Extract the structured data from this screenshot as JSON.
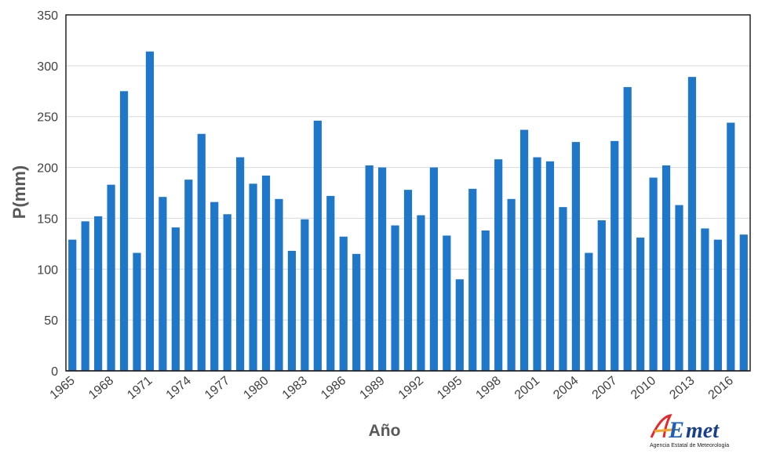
{
  "chart_data": {
    "type": "bar",
    "x": [
      1965,
      1966,
      1967,
      1968,
      1969,
      1970,
      1971,
      1972,
      1973,
      1974,
      1975,
      1976,
      1977,
      1978,
      1979,
      1980,
      1981,
      1982,
      1983,
      1984,
      1985,
      1986,
      1987,
      1988,
      1989,
      1990,
      1991,
      1992,
      1993,
      1994,
      1995,
      1996,
      1997,
      1998,
      1999,
      2000,
      2001,
      2002,
      2003,
      2004,
      2005,
      2006,
      2007,
      2008,
      2009,
      2010,
      2011,
      2012,
      2013,
      2014,
      2015,
      2016,
      2017
    ],
    "values": [
      129,
      147,
      152,
      183,
      275,
      116,
      314,
      171,
      141,
      188,
      233,
      166,
      154,
      210,
      184,
      192,
      169,
      118,
      149,
      246,
      172,
      132,
      115,
      202,
      200,
      143,
      178,
      153,
      200,
      133,
      90,
      179,
      138,
      208,
      169,
      237,
      210,
      206,
      161,
      225,
      116,
      148,
      226,
      279,
      131,
      190,
      202,
      163,
      289,
      140,
      129,
      244,
      134
    ],
    "xticks": [
      "1965",
      "1968",
      "1971",
      "1974",
      "1977",
      "1980",
      "1983",
      "1986",
      "1989",
      "1992",
      "1995",
      "1998",
      "2001",
      "2004",
      "2007",
      "2010",
      "2013",
      "2016"
    ],
    "yticks": [
      0,
      50,
      100,
      150,
      200,
      250,
      300,
      350
    ],
    "ylim": [
      0,
      350
    ],
    "xlabel": "Año",
    "ylabel": "P(mm)",
    "grid": true,
    "bar_color": "#1f77c9"
  },
  "logo": {
    "name": "AEmet",
    "subtitle": "Agencia Estatal de Meteorología",
    "colors": [
      "#e8262b",
      "#f5a623",
      "#1f5fb8",
      "#1a3f8f"
    ]
  }
}
